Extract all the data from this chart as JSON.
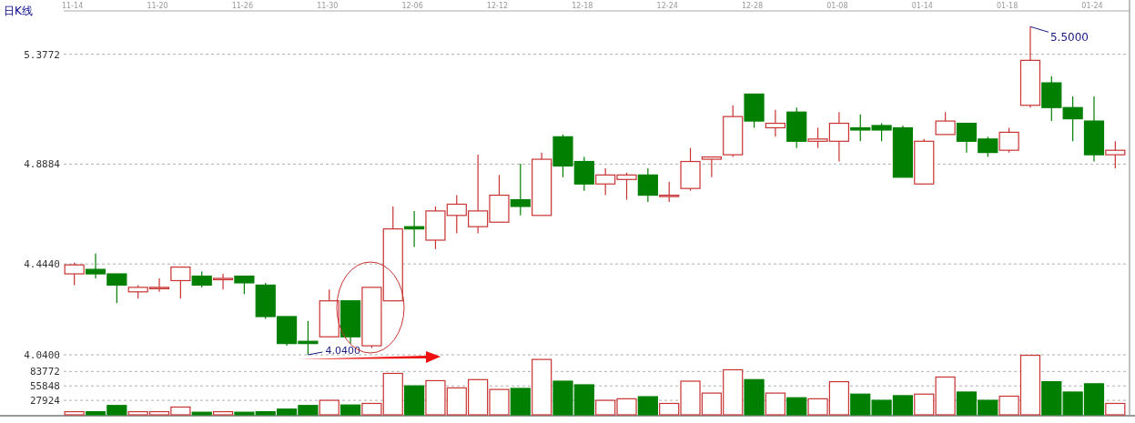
{
  "chart_data": [
    {
      "type": "candlestick",
      "title": "日K线",
      "categories": [
        "11-14",
        null,
        null,
        null,
        "11-20",
        null,
        null,
        null,
        "11-26",
        null,
        null,
        null,
        "11-30",
        null,
        null,
        null,
        "12-06",
        null,
        null,
        null,
        "12-12",
        null,
        null,
        null,
        "12-18",
        null,
        null,
        null,
        "12-24",
        null,
        null,
        null,
        "12-28",
        null,
        null,
        null,
        "01-08",
        null,
        null,
        null,
        "01-14",
        null,
        null,
        null,
        "01-18",
        null,
        null,
        null,
        "01-24",
        null
      ],
      "ohlc": [
        [
          4.4,
          4.45,
          4.35,
          4.44
        ],
        [
          4.42,
          4.49,
          4.38,
          4.4
        ],
        [
          4.4,
          4.4,
          4.27,
          4.35
        ],
        [
          4.32,
          4.35,
          4.29,
          4.34
        ],
        [
          4.34,
          4.38,
          4.32,
          4.34
        ],
        [
          4.37,
          4.43,
          4.29,
          4.43
        ],
        [
          4.39,
          4.41,
          4.34,
          4.35
        ],
        [
          4.38,
          4.4,
          4.33,
          4.38
        ],
        [
          4.39,
          4.39,
          4.31,
          4.36
        ],
        [
          4.35,
          4.36,
          4.2,
          4.21
        ],
        [
          4.21,
          4.21,
          4.08,
          4.09
        ],
        [
          4.1,
          4.19,
          4.04,
          4.09
        ],
        [
          4.12,
          4.33,
          4.12,
          4.28
        ],
        [
          4.28,
          4.28,
          4.09,
          4.12
        ],
        [
          4.08,
          4.34,
          4.07,
          4.34
        ],
        [
          4.28,
          4.7,
          4.28,
          4.6
        ],
        [
          4.61,
          4.68,
          4.52,
          4.6
        ],
        [
          4.55,
          4.7,
          4.51,
          4.68
        ],
        [
          4.66,
          4.75,
          4.58,
          4.71
        ],
        [
          4.61,
          4.93,
          4.58,
          4.68
        ],
        [
          4.63,
          4.84,
          4.63,
          4.75
        ],
        [
          4.73,
          4.89,
          4.66,
          4.7
        ],
        [
          4.66,
          4.94,
          4.66,
          4.91
        ],
        [
          5.01,
          5.02,
          4.83,
          4.88
        ],
        [
          4.9,
          4.92,
          4.77,
          4.8
        ],
        [
          4.8,
          4.87,
          4.75,
          4.84
        ],
        [
          4.82,
          4.85,
          4.73,
          4.84
        ],
        [
          4.84,
          4.87,
          4.72,
          4.75
        ],
        [
          4.75,
          4.81,
          4.72,
          4.75
        ],
        [
          4.78,
          4.96,
          4.77,
          4.9
        ],
        [
          4.91,
          4.92,
          4.83,
          4.92
        ],
        [
          4.93,
          5.15,
          4.92,
          5.1
        ],
        [
          5.2,
          5.2,
          5.05,
          5.08
        ],
        [
          5.05,
          5.13,
          5.01,
          5.07
        ],
        [
          5.12,
          5.14,
          4.96,
          4.99
        ],
        [
          4.99,
          5.05,
          4.96,
          5.0
        ],
        [
          4.99,
          5.12,
          4.9,
          5.07
        ],
        [
          5.05,
          5.11,
          4.99,
          5.04
        ],
        [
          5.06,
          5.07,
          4.99,
          5.04
        ],
        [
          5.05,
          5.06,
          4.83,
          4.83
        ],
        [
          4.8,
          5.0,
          4.8,
          4.99
        ],
        [
          5.02,
          5.12,
          5.02,
          5.08
        ],
        [
          5.07,
          5.07,
          4.94,
          4.99
        ],
        [
          5.0,
          5.01,
          4.92,
          4.94
        ],
        [
          4.95,
          5.05,
          4.94,
          5.03
        ],
        [
          5.15,
          5.5,
          5.14,
          5.35
        ],
        [
          5.25,
          5.28,
          5.08,
          5.14
        ],
        [
          5.14,
          5.19,
          4.99,
          5.09
        ],
        [
          5.08,
          5.19,
          4.9,
          4.93
        ],
        [
          4.93,
          4.99,
          4.87,
          4.95
        ]
      ],
      "colors": [
        "#c83232",
        "#007f00",
        "#007f00",
        "#c83232",
        "#c83232",
        "#c83232",
        "#007f00",
        "#c83232",
        "#007f00",
        "#007f00",
        "#007f00",
        "#007f00",
        "#c83232",
        "#007f00",
        "#c83232",
        "#c83232",
        "#007f00",
        "#c83232",
        "#c83232",
        "#c83232",
        "#c83232",
        "#007f00",
        "#c83232",
        "#007f00",
        "#007f00",
        "#c83232",
        "#c83232",
        "#007f00",
        "#c83232",
        "#c83232",
        "#c83232",
        "#c83232",
        "#007f00",
        "#c83232",
        "#007f00",
        "#c83232",
        "#c83232",
        "#007f00",
        "#007f00",
        "#007f00",
        "#c83232",
        "#c83232",
        "#007f00",
        "#007f00",
        "#c83232",
        "#c83232",
        "#007f00",
        "#007f00",
        "#007f00",
        "#c83232"
      ],
      "ylim": [
        4.04,
        5.57
      ],
      "yticks": [
        {
          "value": 4.04,
          "label": "4.0400"
        },
        {
          "value": 4.444,
          "label": "4.4440"
        },
        4.8884,
        5.3772
      ],
      "grid": "y",
      "annotations": [
        "4.0400",
        "5.5000"
      ]
    },
    {
      "type": "bar",
      "tick_labels": "y",
      "categories": [
        null,
        null,
        null,
        null,
        null,
        null,
        null,
        null,
        null,
        null,
        null,
        null,
        null,
        null,
        null,
        null,
        null,
        null,
        null,
        null,
        null,
        null,
        null,
        null,
        null,
        null,
        null,
        null,
        null,
        null,
        null,
        null,
        null,
        null,
        null,
        null,
        null,
        null,
        null,
        null,
        null,
        null,
        null,
        null,
        null,
        null,
        null,
        null,
        null,
        null
      ],
      "values": [
        6000,
        6000,
        18000,
        6000,
        6000,
        15000,
        5000,
        6000,
        5000,
        6000,
        11000,
        18000,
        28000,
        19000,
        22000,
        80000,
        56000,
        66000,
        52000,
        68000,
        49000,
        51000,
        107000,
        65000,
        58000,
        28000,
        31000,
        35000,
        22000,
        65000,
        42000,
        87000,
        68000,
        42000,
        33000,
        31000,
        64000,
        40000,
        28000,
        37000,
        40000,
        73000,
        44000,
        28000,
        36000,
        115000,
        64000,
        44000,
        60000,
        22000
      ],
      "colors": [
        "#c83232",
        "#007f00",
        "#007f00",
        "#c83232",
        "#c83232",
        "#c83232",
        "#007f00",
        "#c83232",
        "#007f00",
        "#007f00",
        "#007f00",
        "#007f00",
        "#c83232",
        "#007f00",
        "#c83232",
        "#c83232",
        "#007f00",
        "#c83232",
        "#c83232",
        "#c83232",
        "#c83232",
        "#007f00",
        "#c83232",
        "#007f00",
        "#007f00",
        "#c83232",
        "#c83232",
        "#007f00",
        "#c83232",
        "#c83232",
        "#c83232",
        "#c83232",
        "#007f00",
        "#c83232",
        "#007f00",
        "#c83232",
        "#c83232",
        "#007f00",
        "#007f00",
        "#007f00",
        "#c83232",
        "#c83232",
        "#007f00",
        "#007f00",
        "#c83232",
        "#c83232",
        "#007f00",
        "#007f00",
        "#007f00",
        "#c83232"
      ],
      "ylim": [
        0,
        116000
      ],
      "yticks": [
        27924,
        55848,
        83772
      ],
      "grid": "y"
    }
  ]
}
